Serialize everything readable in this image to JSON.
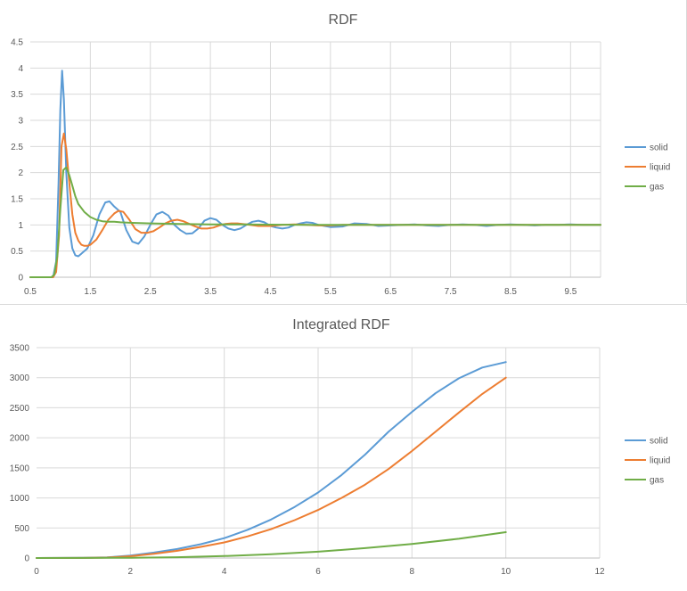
{
  "chart_data": [
    {
      "type": "line",
      "title": "RDF",
      "xlabel": "",
      "ylabel": "",
      "xlim": [
        0.5,
        10.0
      ],
      "ylim": [
        0,
        4.5
      ],
      "x_ticks": [
        "0.5",
        "1.5",
        "2.5",
        "3.5",
        "4.5",
        "5.5",
        "6.5",
        "7.5",
        "8.5",
        "9.5"
      ],
      "y_ticks": [
        "0",
        "0.5",
        "1",
        "1.5",
        "2",
        "2.5",
        "3",
        "3.5",
        "4",
        "4.5"
      ],
      "grid": true,
      "legend_position": "right",
      "series": [
        {
          "name": "solid",
          "color": "#5b9bd5",
          "x": [
            0.5,
            0.88,
            0.93,
            0.97,
            1.0,
            1.03,
            1.06,
            1.1,
            1.15,
            1.2,
            1.25,
            1.3,
            1.35,
            1.45,
            1.55,
            1.65,
            1.75,
            1.82,
            1.9,
            2.0,
            2.1,
            2.2,
            2.3,
            2.4,
            2.5,
            2.6,
            2.7,
            2.8,
            2.9,
            3.0,
            3.1,
            3.2,
            3.3,
            3.4,
            3.5,
            3.6,
            3.7,
            3.8,
            3.9,
            4.0,
            4.1,
            4.2,
            4.3,
            4.4,
            4.5,
            4.6,
            4.7,
            4.8,
            4.9,
            5.0,
            5.1,
            5.2,
            5.3,
            5.5,
            5.7,
            5.9,
            6.1,
            6.3,
            6.5,
            6.7,
            6.9,
            7.1,
            7.3,
            7.5,
            7.7,
            7.9,
            8.1,
            8.3,
            8.5,
            8.7,
            8.9,
            9.1,
            9.3,
            9.5,
            9.7,
            10.0
          ],
          "y": [
            0,
            0,
            0.3,
            1.8,
            3.2,
            3.95,
            3.4,
            2.0,
            0.95,
            0.55,
            0.42,
            0.4,
            0.45,
            0.55,
            0.8,
            1.2,
            1.43,
            1.45,
            1.35,
            1.25,
            0.9,
            0.68,
            0.64,
            0.78,
            1.0,
            1.2,
            1.25,
            1.18,
            1.0,
            0.9,
            0.83,
            0.84,
            0.93,
            1.08,
            1.13,
            1.1,
            1.0,
            0.93,
            0.9,
            0.93,
            1.0,
            1.06,
            1.08,
            1.05,
            0.98,
            0.95,
            0.93,
            0.95,
            1.0,
            1.03,
            1.05,
            1.04,
            1.0,
            0.96,
            0.97,
            1.03,
            1.02,
            0.98,
            0.99,
            1.0,
            1.01,
            0.99,
            0.98,
            1.0,
            1.01,
            1.0,
            0.98,
            1.0,
            1.01,
            1.0,
            0.99,
            1.0,
            1.0,
            1.01,
            1.0,
            1.0
          ]
        },
        {
          "name": "liquid",
          "color": "#ed7d31",
          "x": [
            0.5,
            0.88,
            0.93,
            0.98,
            1.02,
            1.06,
            1.1,
            1.15,
            1.2,
            1.25,
            1.3,
            1.35,
            1.4,
            1.45,
            1.5,
            1.6,
            1.7,
            1.8,
            1.9,
            1.97,
            2.05,
            2.15,
            2.25,
            2.35,
            2.45,
            2.55,
            2.65,
            2.75,
            2.85,
            2.95,
            3.05,
            3.15,
            3.25,
            3.35,
            3.45,
            3.55,
            3.65,
            3.75,
            3.85,
            3.95,
            4.1,
            4.3,
            4.5,
            4.7,
            4.9,
            5.1,
            5.3,
            5.5,
            5.7,
            5.9,
            6.1,
            6.5,
            7.0,
            7.5,
            8.0,
            8.5,
            9.0,
            9.5,
            10.0
          ],
          "y": [
            0,
            0,
            0.1,
            0.8,
            2.5,
            2.75,
            2.45,
            1.8,
            1.2,
            0.85,
            0.7,
            0.62,
            0.6,
            0.6,
            0.62,
            0.72,
            0.9,
            1.1,
            1.22,
            1.27,
            1.25,
            1.1,
            0.92,
            0.85,
            0.85,
            0.88,
            0.95,
            1.03,
            1.08,
            1.1,
            1.07,
            1.02,
            0.97,
            0.93,
            0.93,
            0.95,
            0.99,
            1.02,
            1.03,
            1.03,
            1.01,
            0.98,
            0.98,
            1.0,
            1.01,
            1.0,
            0.99,
            0.99,
            1.0,
            1.0,
            1.0,
            1.0,
            1.0,
            1.0,
            1.0,
            1.0,
            1.0,
            1.0,
            1.0
          ]
        },
        {
          "name": "gas",
          "color": "#70ad47",
          "x": [
            0.5,
            0.85,
            0.9,
            0.95,
            1.0,
            1.05,
            1.1,
            1.15,
            1.2,
            1.25,
            1.3,
            1.4,
            1.5,
            1.6,
            1.7,
            1.8,
            1.9,
            2.0,
            2.2,
            2.5,
            3.0,
            3.5,
            4.0,
            5.0,
            6.0,
            7.0,
            8.0,
            9.0,
            10.0
          ],
          "y": [
            0,
            0,
            0.05,
            0.4,
            1.3,
            2.05,
            2.1,
            1.95,
            1.75,
            1.55,
            1.4,
            1.25,
            1.15,
            1.1,
            1.07,
            1.06,
            1.06,
            1.05,
            1.04,
            1.03,
            1.02,
            1.01,
            1.01,
            1.0,
            1.0,
            1.0,
            1.0,
            1.0,
            1.0
          ]
        }
      ]
    },
    {
      "type": "line",
      "title": "Integrated RDF",
      "xlabel": "",
      "ylabel": "",
      "xlim": [
        0,
        12
      ],
      "ylim": [
        0,
        3500
      ],
      "x_ticks": [
        "0",
        "2",
        "4",
        "6",
        "8",
        "10",
        "12"
      ],
      "y_ticks": [
        "0",
        "500",
        "1000",
        "1500",
        "2000",
        "2500",
        "3000",
        "3500"
      ],
      "grid": true,
      "legend_position": "right",
      "series": [
        {
          "name": "solid",
          "color": "#5b9bd5",
          "x": [
            0,
            1,
            1.5,
            2,
            2.5,
            3,
            3.5,
            4,
            4.5,
            5,
            5.5,
            6,
            6.5,
            7,
            7.5,
            8,
            8.5,
            9,
            9.5,
            10
          ],
          "y": [
            0,
            3,
            10,
            40,
            90,
            150,
            230,
            330,
            470,
            640,
            850,
            1090,
            1380,
            1720,
            2100,
            2430,
            2740,
            2990,
            3170,
            3260
          ]
        },
        {
          "name": "liquid",
          "color": "#ed7d31",
          "x": [
            0,
            1,
            1.5,
            2,
            2.5,
            3,
            3.5,
            4,
            4.5,
            5,
            5.5,
            6,
            6.5,
            7,
            7.5,
            8,
            8.5,
            9,
            9.5,
            10
          ],
          "y": [
            0,
            2,
            8,
            30,
            70,
            120,
            185,
            260,
            360,
            480,
            630,
            800,
            1000,
            1220,
            1480,
            1780,
            2100,
            2420,
            2730,
            3000
          ]
        },
        {
          "name": "gas",
          "color": "#70ad47",
          "x": [
            0,
            1,
            2,
            3,
            4,
            5,
            6,
            7,
            8,
            9,
            10
          ],
          "y": [
            0,
            1,
            4,
            14,
            32,
            62,
            105,
            165,
            235,
            320,
            430
          ]
        }
      ]
    }
  ]
}
